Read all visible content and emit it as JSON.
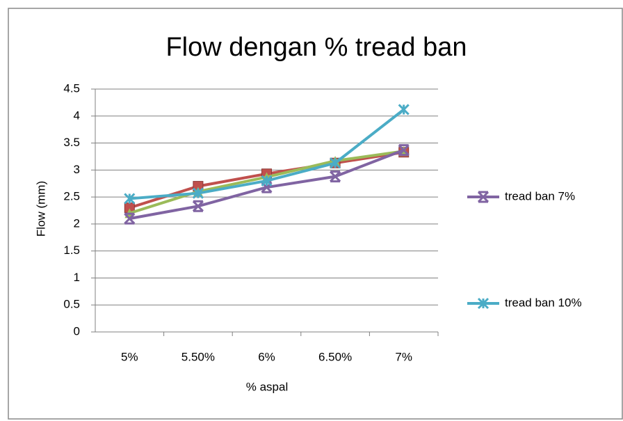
{
  "chart_data": {
    "type": "line",
    "title": "Flow dengan % tread ban",
    "x_label": "% aspal",
    "y_label": "Flow (mm)",
    "categories": [
      "5%",
      "5.50%",
      "6%",
      "6.50%",
      "7%"
    ],
    "series": [
      {
        "color": "#c0504d",
        "marker": "square",
        "values": [
          2.3,
          2.7,
          2.93,
          3.13,
          3.33
        ]
      },
      {
        "color": "#9bbb59",
        "marker": "triangle",
        "values": [
          2.2,
          2.6,
          2.87,
          3.17,
          3.35
        ]
      },
      {
        "name": "tread ban 7%",
        "color": "#8064a2",
        "marker": "x",
        "values": [
          2.1,
          2.33,
          2.68,
          2.88,
          3.37
        ]
      },
      {
        "name": "tread ban 10%",
        "color": "#4bacc6",
        "marker": "star",
        "values": [
          2.47,
          2.57,
          2.8,
          3.13,
          4.12
        ]
      }
    ],
    "ylim": [
      0,
      4.5
    ],
    "yticks": [
      0,
      0.5,
      1,
      1.5,
      2,
      2.5,
      3,
      3.5,
      4,
      4.5
    ],
    "grid": true,
    "legend": "right"
  }
}
